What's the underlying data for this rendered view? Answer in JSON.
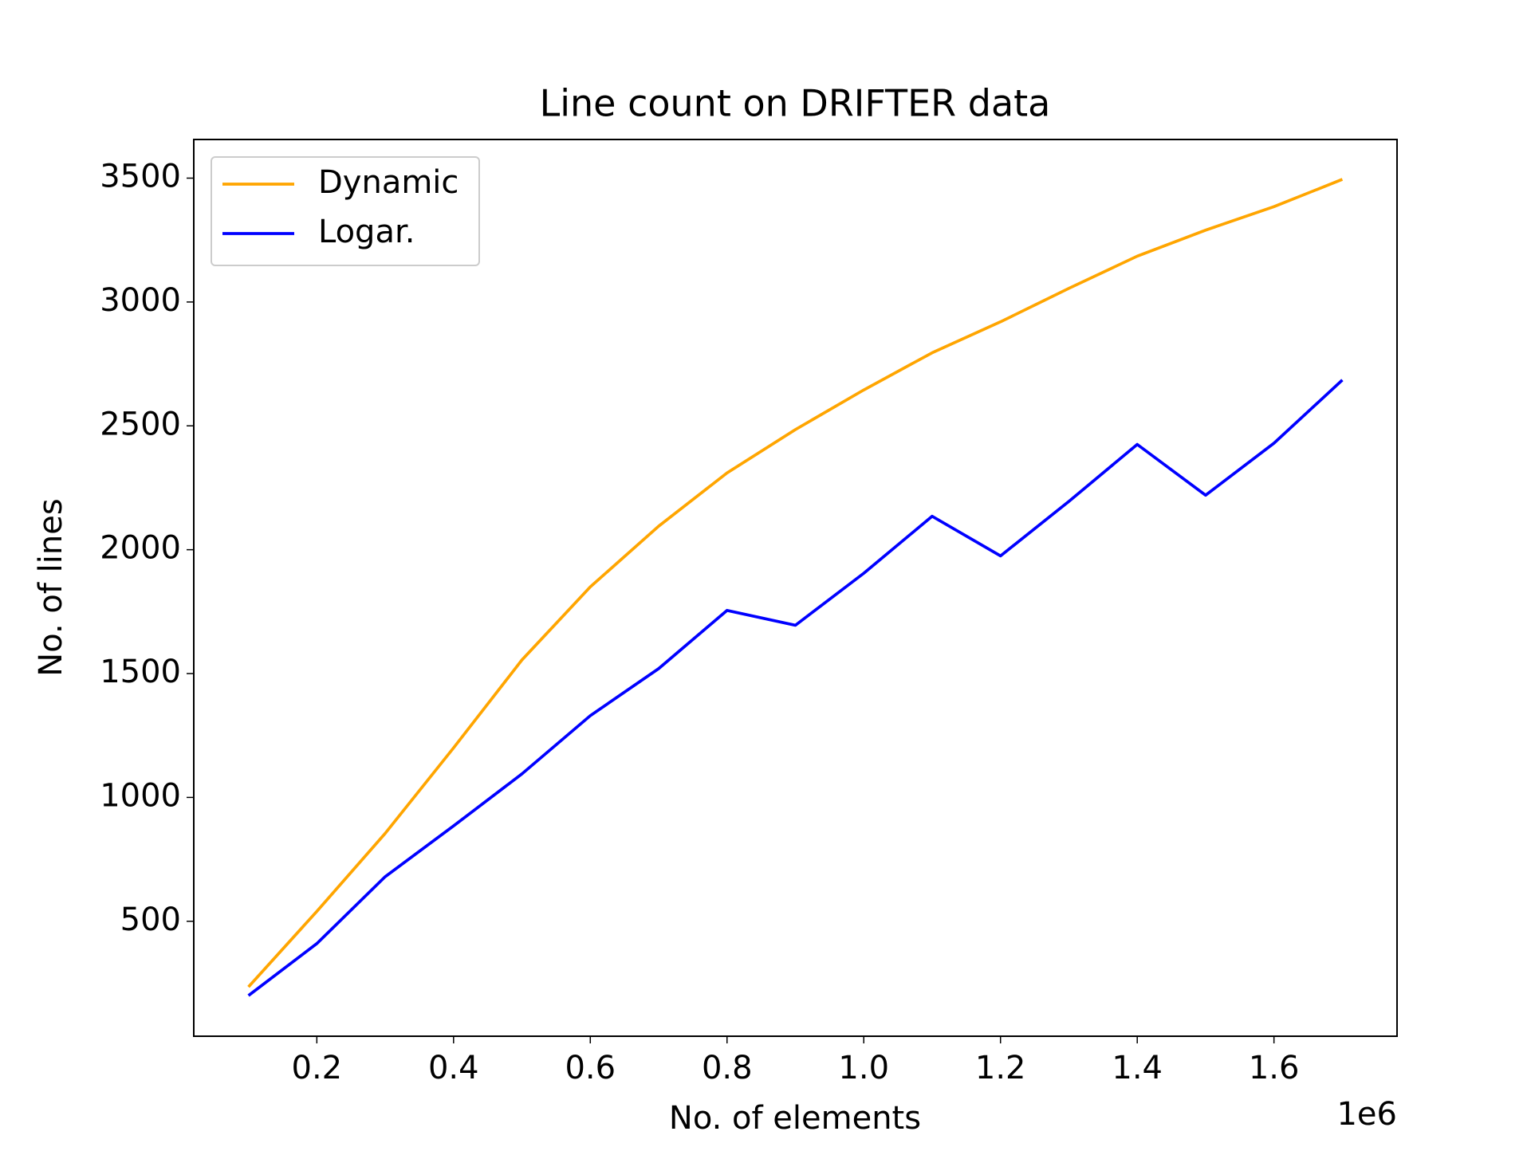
{
  "chart_data": {
    "type": "line",
    "title": "Line count on DRIFTER data",
    "x_label": "No. of elements",
    "y_label": "No. of lines",
    "x_offset_label": "1e6",
    "x": [
      100000,
      200000,
      300000,
      400000,
      500000,
      600000,
      700000,
      800000,
      900000,
      1000000,
      1100000,
      1200000,
      1300000,
      1400000,
      1500000,
      1600000,
      1700000
    ],
    "series": [
      {
        "name": "Dynamic",
        "color": "#ffa500",
        "values": [
          235,
          540,
          855,
          1200,
          1555,
          1850,
          2095,
          2310,
          2485,
          2645,
          2795,
          2920,
          3055,
          3185,
          3290,
          3385,
          3495
        ]
      },
      {
        "name": "Logar.",
        "color": "#0000ff",
        "values": [
          200,
          410,
          680,
          885,
          1095,
          1330,
          1520,
          1755,
          1695,
          1905,
          2135,
          1975,
          2195,
          2425,
          2220,
          2430,
          2685
        ]
      }
    ],
    "xlim": [
      20000,
      1780000
    ],
    "xticks": [
      {
        "value": 200000,
        "label": "0.2"
      },
      {
        "value": 400000,
        "label": "0.4"
      },
      {
        "value": 600000,
        "label": "0.6"
      },
      {
        "value": 800000,
        "label": "0.8"
      },
      {
        "value": 1000000,
        "label": "1.0"
      },
      {
        "value": 1200000,
        "label": "1.2"
      },
      {
        "value": 1400000,
        "label": "1.4"
      },
      {
        "value": 1600000,
        "label": "1.6"
      }
    ],
    "ylim": [
      36,
      3656
    ],
    "yticks": [
      500,
      1000,
      1500,
      2000,
      2500,
      3000,
      3500
    ],
    "grid": false,
    "legend": "upper-left"
  }
}
